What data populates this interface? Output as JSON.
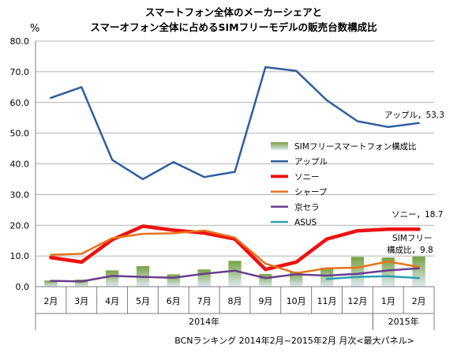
{
  "chart_data": {
    "type": "bar+line",
    "title": [
      "スマートフォン全体のメーカーシェアと",
      "スマーオフォン全体に占めるSIMフリーモデルの販売台数構成比"
    ],
    "ylabel": "%",
    "ylim": [
      0,
      80
    ],
    "yticks": [
      "0.0",
      "10.0",
      "20.0",
      "30.0",
      "40.0",
      "50.0",
      "60.0",
      "70.0",
      "80.0"
    ],
    "categories": [
      "2月",
      "3月",
      "4月",
      "5月",
      "6月",
      "7月",
      "8月",
      "9月",
      "10月",
      "11月",
      "12月",
      "1月",
      "2月"
    ],
    "year_groups": [
      {
        "label": "2014年",
        "from": 0,
        "to": 10
      },
      {
        "label": "2015年",
        "from": 11,
        "to": 12
      }
    ],
    "bars": {
      "name": "SIMフリースマートフォン構成比",
      "color": "#76a23f",
      "values": [
        2.0,
        2.3,
        5.3,
        6.7,
        4.0,
        5.6,
        8.4,
        4.1,
        4.9,
        6.2,
        9.7,
        9.5,
        9.8
      ]
    },
    "series": [
      {
        "name": "アップル",
        "color": "#2f5d9e",
        "width": 2.5,
        "values": [
          61.5,
          65.0,
          41.3,
          35.0,
          40.6,
          35.7,
          37.4,
          71.5,
          70.3,
          60.7,
          53.9,
          52.0,
          53.3
        ]
      },
      {
        "name": "ソニー",
        "color": "#ee1111",
        "width": 4.5,
        "values": [
          9.5,
          8.0,
          15.3,
          19.7,
          18.4,
          17.5,
          15.5,
          5.6,
          8.0,
          15.5,
          18.2,
          18.7,
          18.7
        ]
      },
      {
        "name": "シャープ",
        "color": "#e8731a",
        "width": 2.5,
        "values": [
          10.4,
          10.7,
          15.8,
          17.2,
          17.4,
          18.3,
          16.0,
          7.5,
          4.4,
          6.0,
          6.2,
          8.2,
          6.4
        ]
      },
      {
        "name": "京セラ",
        "color": "#6a3d8f",
        "width": 2.5,
        "values": [
          1.9,
          1.7,
          3.5,
          3.2,
          2.9,
          4.2,
          5.2,
          2.8,
          4.0,
          3.6,
          4.2,
          5.3,
          6.0
        ]
      },
      {
        "name": "ASUS",
        "color": "#2aa0b8",
        "width": 2.5,
        "values": [
          null,
          null,
          null,
          null,
          null,
          null,
          null,
          null,
          null,
          2.5,
          3.2,
          3.4,
          2.8
        ]
      }
    ],
    "annotations": [
      {
        "text": "アップル，53.3"
      },
      {
        "text": "ソニー，18.7"
      },
      {
        "text": "SIMフリー"
      },
      {
        "text": "構成比，9.8"
      }
    ],
    "footer": "BCNランキング 2014年2月~2015年2月 月次<最大パネル>",
    "grid": "horizontal-major",
    "legend": "right-center"
  }
}
